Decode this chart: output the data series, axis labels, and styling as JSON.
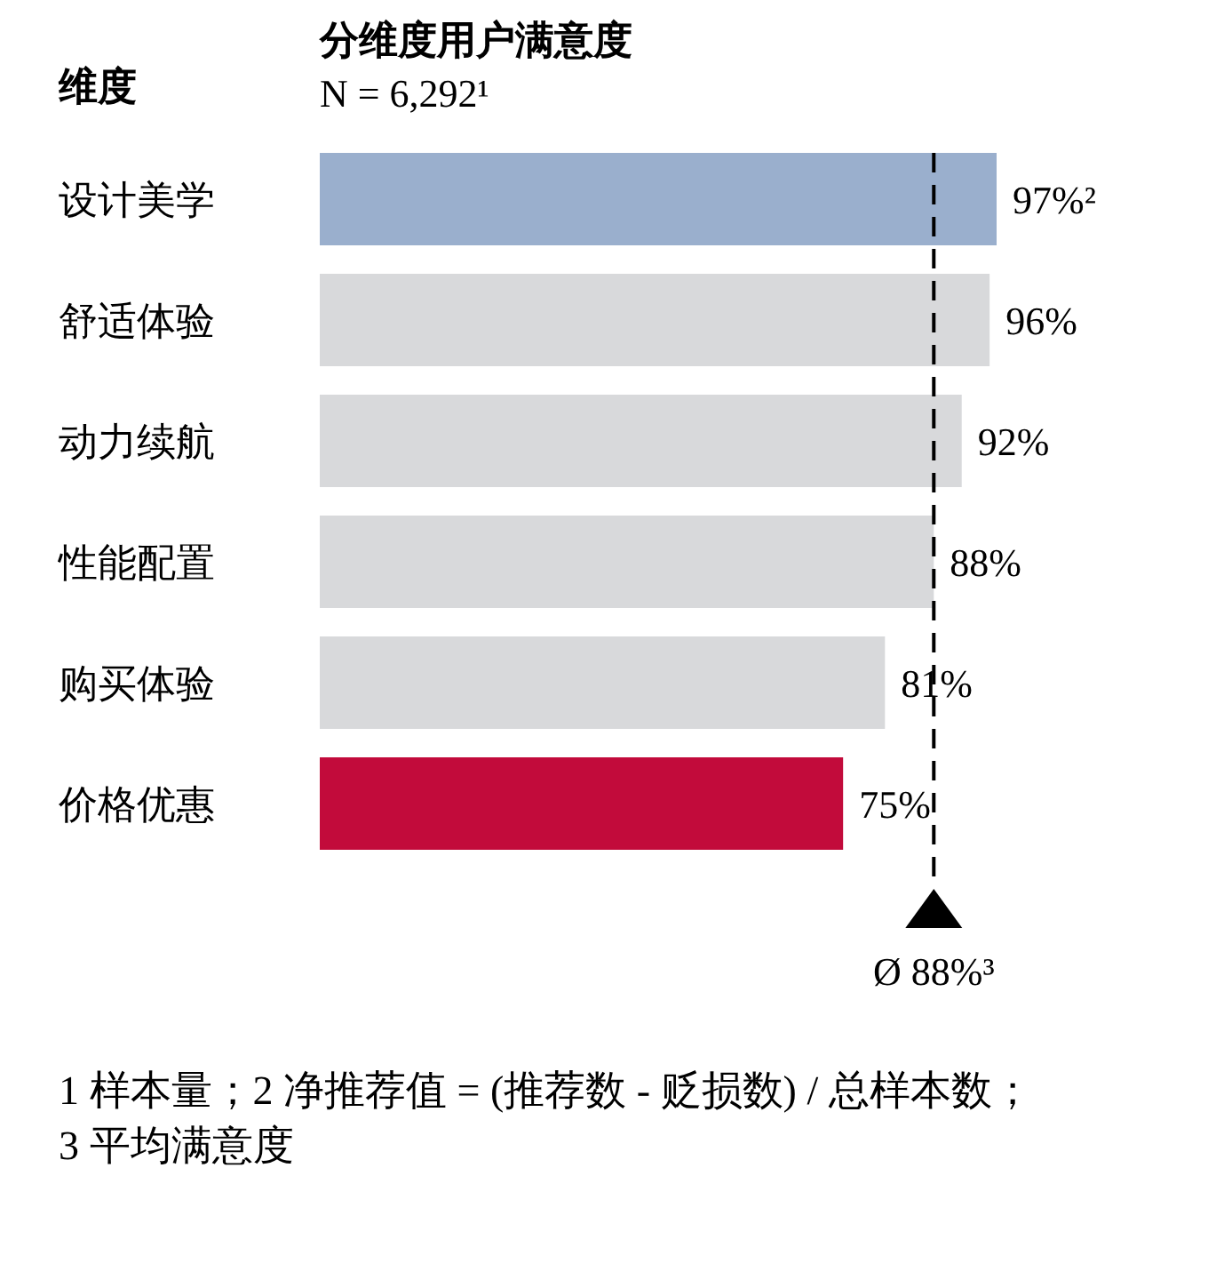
{
  "chart_data": {
    "type": "bar",
    "orientation": "horizontal",
    "title": "分维度用户满意度",
    "subtitle": "N = 6,292¹",
    "ylabel": "维度",
    "categories": [
      "设计美学",
      "舒适体验",
      "动力续航",
      "性能配置",
      "购买体验",
      "价格优惠"
    ],
    "values": [
      97,
      96,
      92,
      88,
      81,
      75
    ],
    "colors": [
      "#9aafcd",
      "#d8d9db",
      "#d8d9db",
      "#d8d9db",
      "#d8d9db",
      "#c20b3b"
    ],
    "value_labels": [
      "97%²",
      "96%",
      "92%",
      "88%",
      "81%",
      "75%"
    ],
    "ref_lines": [
      {
        "axis": "x",
        "value": 88,
        "label": "Ø 88%³",
        "line_style": "dashed",
        "color": "#000000"
      }
    ],
    "tick_labels": "y",
    "annotations": [
      "1 样本量；2 净推荐值 = (推荐数 - 贬损数) / 总样本数；3 平均满意度"
    ]
  }
}
